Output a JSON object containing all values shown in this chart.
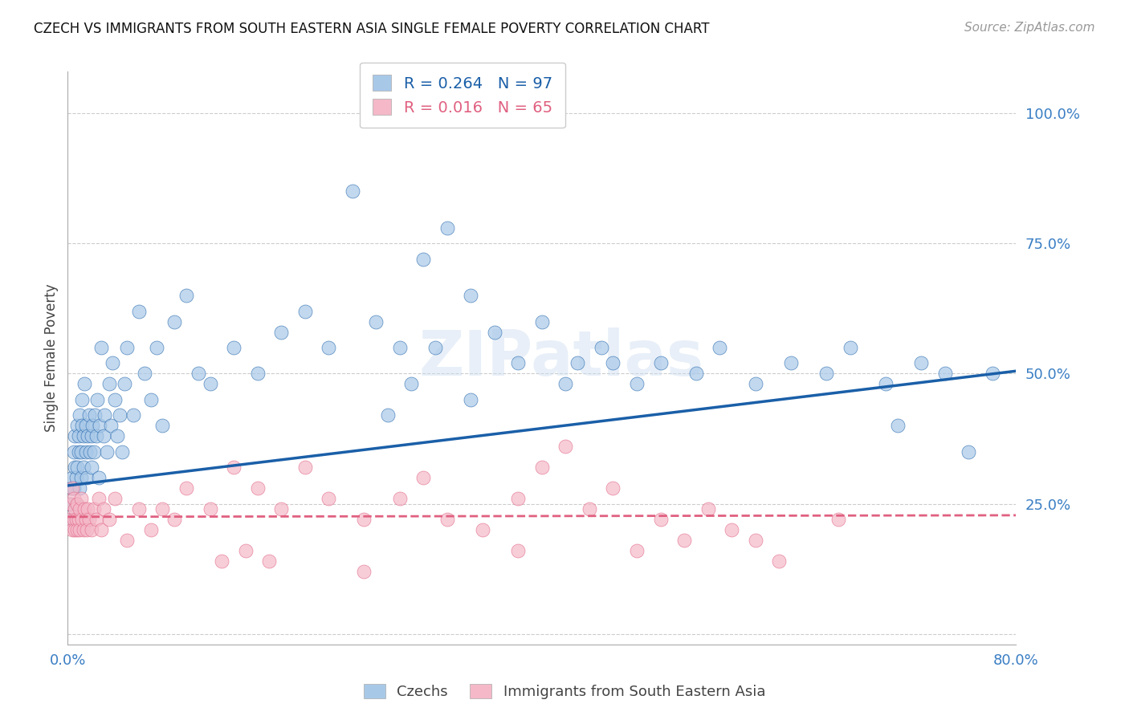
{
  "title": "CZECH VS IMMIGRANTS FROM SOUTH EASTERN ASIA SINGLE FEMALE POVERTY CORRELATION CHART",
  "source": "Source: ZipAtlas.com",
  "ylabel": "Single Female Poverty",
  "xlim": [
    0.0,
    0.8
  ],
  "ylim": [
    -0.02,
    1.08
  ],
  "yticks": [
    0.0,
    0.25,
    0.5,
    0.75,
    1.0
  ],
  "ytick_labels": [
    "",
    "25.0%",
    "50.0%",
    "75.0%",
    "100.0%"
  ],
  "xticks": [
    0.0,
    0.2,
    0.4,
    0.6,
    0.8
  ],
  "xtick_labels": [
    "0.0%",
    "",
    "",
    "",
    "80.0%"
  ],
  "grid_color": "#cccccc",
  "background_color": "#ffffff",
  "blue_color": "#a8c8e8",
  "pink_color": "#f4b8c8",
  "blue_line_color": "#1a5fa8",
  "pink_line_color": "#e06080",
  "R_blue": 0.264,
  "N_blue": 97,
  "R_pink": 0.016,
  "N_pink": 65,
  "legend_label_blue": "Czechs",
  "legend_label_pink": "Immigrants from South Eastern Asia",
  "watermark": "ZIPatlas",
  "blue_line_x0": 0.0,
  "blue_line_y0": 0.285,
  "blue_line_x1": 0.8,
  "blue_line_y1": 0.505,
  "pink_line_x0": 0.0,
  "pink_line_y0": 0.225,
  "pink_line_x1": 0.8,
  "pink_line_y1": 0.228,
  "blue_x": [
    0.002,
    0.003,
    0.004,
    0.004,
    0.005,
    0.005,
    0.006,
    0.006,
    0.007,
    0.007,
    0.008,
    0.008,
    0.009,
    0.009,
    0.01,
    0.01,
    0.011,
    0.011,
    0.012,
    0.012,
    0.013,
    0.013,
    0.014,
    0.015,
    0.015,
    0.016,
    0.017,
    0.018,
    0.019,
    0.02,
    0.02,
    0.021,
    0.022,
    0.023,
    0.024,
    0.025,
    0.026,
    0.027,
    0.028,
    0.03,
    0.031,
    0.033,
    0.035,
    0.036,
    0.038,
    0.04,
    0.042,
    0.044,
    0.046,
    0.048,
    0.05,
    0.055,
    0.06,
    0.065,
    0.07,
    0.075,
    0.08,
    0.09,
    0.1,
    0.11,
    0.12,
    0.14,
    0.16,
    0.18,
    0.2,
    0.22,
    0.24,
    0.26,
    0.28,
    0.3,
    0.32,
    0.34,
    0.36,
    0.4,
    0.43,
    0.45,
    0.48,
    0.5,
    0.53,
    0.55,
    0.58,
    0.61,
    0.64,
    0.66,
    0.69,
    0.7,
    0.72,
    0.74,
    0.76,
    0.78,
    0.31,
    0.29,
    0.27,
    0.38,
    0.42,
    0.46,
    0.34
  ],
  "blue_y": [
    0.25,
    0.28,
    0.3,
    0.22,
    0.35,
    0.28,
    0.32,
    0.38,
    0.3,
    0.25,
    0.4,
    0.32,
    0.38,
    0.35,
    0.42,
    0.28,
    0.35,
    0.3,
    0.4,
    0.45,
    0.32,
    0.38,
    0.48,
    0.35,
    0.4,
    0.3,
    0.38,
    0.42,
    0.35,
    0.38,
    0.32,
    0.4,
    0.35,
    0.42,
    0.38,
    0.45,
    0.3,
    0.4,
    0.55,
    0.38,
    0.42,
    0.35,
    0.48,
    0.4,
    0.52,
    0.45,
    0.38,
    0.42,
    0.35,
    0.48,
    0.55,
    0.42,
    0.62,
    0.5,
    0.45,
    0.55,
    0.4,
    0.6,
    0.65,
    0.5,
    0.48,
    0.55,
    0.5,
    0.58,
    0.62,
    0.55,
    0.85,
    0.6,
    0.55,
    0.72,
    0.78,
    0.65,
    0.58,
    0.6,
    0.52,
    0.55,
    0.48,
    0.52,
    0.5,
    0.55,
    0.48,
    0.52,
    0.5,
    0.55,
    0.48,
    0.4,
    0.52,
    0.5,
    0.35,
    0.5,
    0.55,
    0.48,
    0.42,
    0.52,
    0.48,
    0.52,
    0.45
  ],
  "pink_x": [
    0.002,
    0.003,
    0.004,
    0.004,
    0.005,
    0.005,
    0.006,
    0.006,
    0.007,
    0.008,
    0.008,
    0.009,
    0.01,
    0.01,
    0.011,
    0.012,
    0.013,
    0.014,
    0.015,
    0.016,
    0.017,
    0.018,
    0.02,
    0.022,
    0.024,
    0.026,
    0.028,
    0.03,
    0.035,
    0.04,
    0.05,
    0.06,
    0.07,
    0.08,
    0.09,
    0.1,
    0.12,
    0.14,
    0.16,
    0.18,
    0.2,
    0.22,
    0.25,
    0.28,
    0.3,
    0.32,
    0.35,
    0.38,
    0.4,
    0.42,
    0.44,
    0.46,
    0.48,
    0.5,
    0.52,
    0.54,
    0.56,
    0.58,
    0.6,
    0.65,
    0.13,
    0.15,
    0.17,
    0.25,
    0.38
  ],
  "pink_y": [
    0.22,
    0.25,
    0.28,
    0.2,
    0.22,
    0.26,
    0.2,
    0.24,
    0.22,
    0.2,
    0.25,
    0.22,
    0.24,
    0.2,
    0.26,
    0.22,
    0.2,
    0.24,
    0.22,
    0.2,
    0.24,
    0.22,
    0.2,
    0.24,
    0.22,
    0.26,
    0.2,
    0.24,
    0.22,
    0.26,
    0.18,
    0.24,
    0.2,
    0.24,
    0.22,
    0.28,
    0.24,
    0.32,
    0.28,
    0.24,
    0.32,
    0.26,
    0.22,
    0.26,
    0.3,
    0.22,
    0.2,
    0.26,
    0.32,
    0.36,
    0.24,
    0.28,
    0.16,
    0.22,
    0.18,
    0.24,
    0.2,
    0.18,
    0.14,
    0.22,
    0.14,
    0.16,
    0.14,
    0.12,
    0.16
  ]
}
